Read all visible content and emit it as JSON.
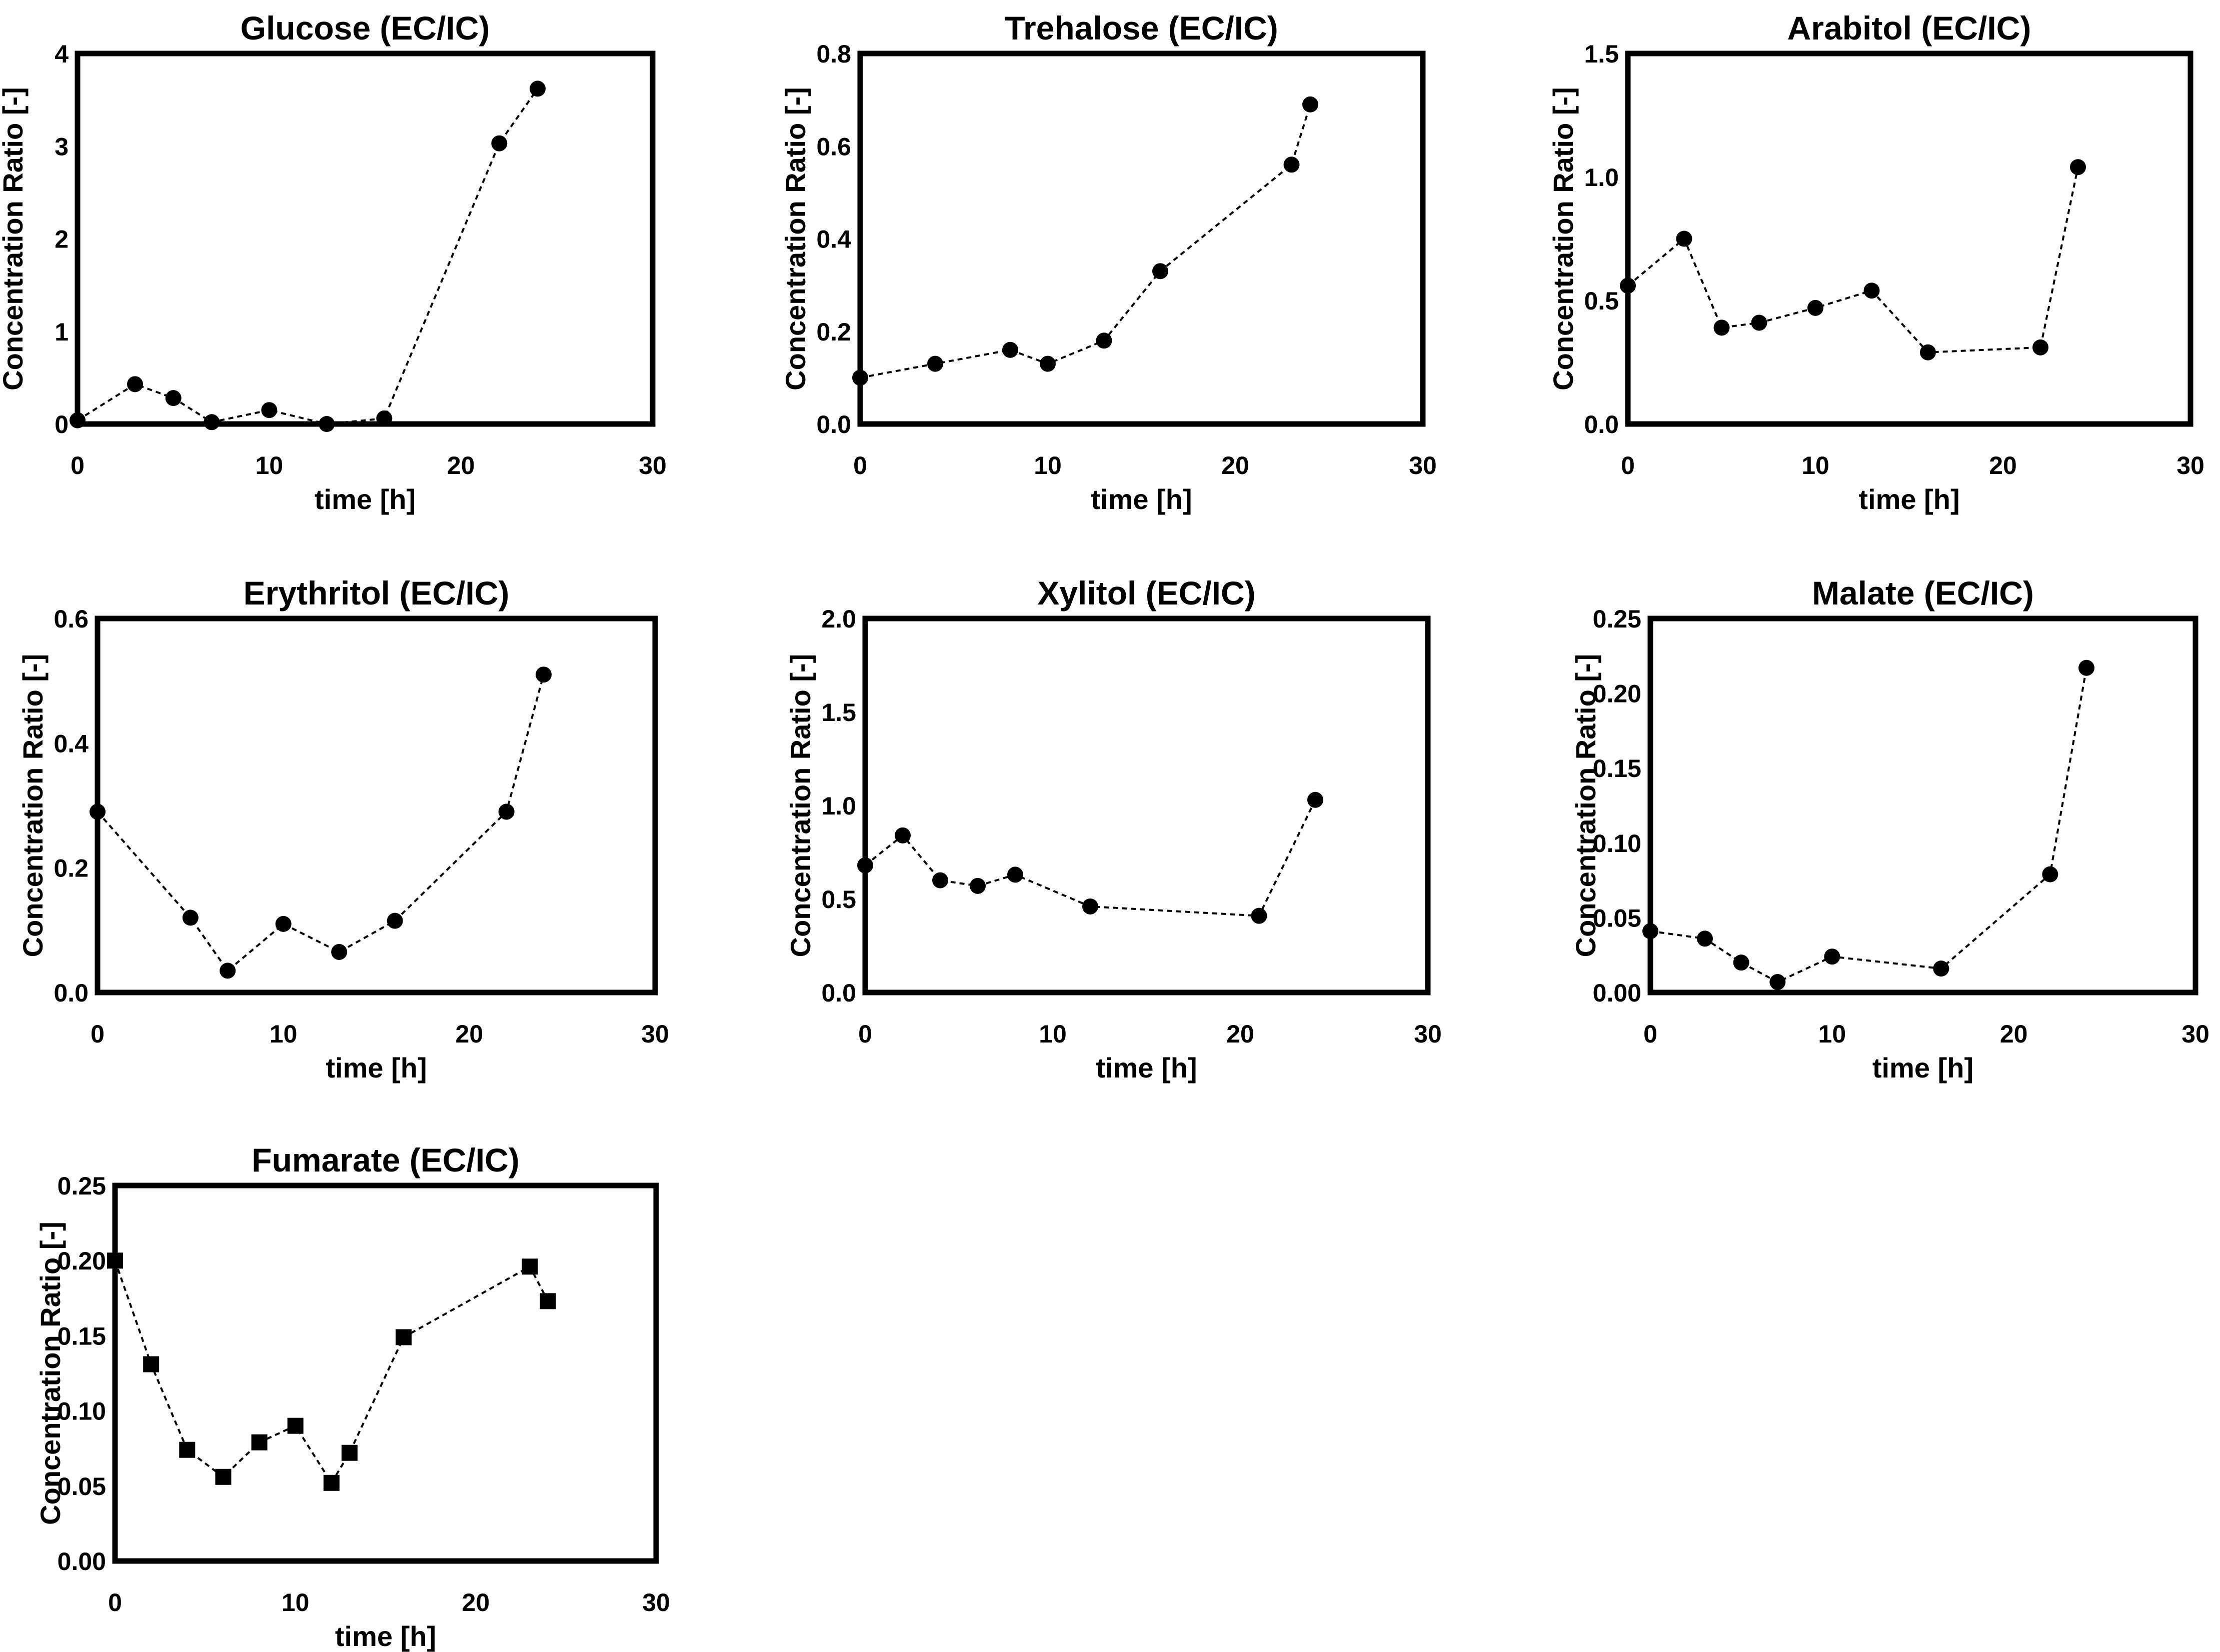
{
  "figure": {
    "background": "#ffffff",
    "mark_color": "#000000"
  },
  "chart_data": [
    {
      "type": "line",
      "title": "Glucose (EC/IC)",
      "xlabel": "time [h]",
      "ylabel": "Concentration Ratio [-]",
      "xlim": [
        0,
        30
      ],
      "ylim": [
        0,
        4
      ],
      "xticks": [
        0,
        10,
        20,
        30
      ],
      "yticks": [
        0,
        1,
        2,
        3,
        4
      ],
      "ytick_labels": [
        "0",
        "1",
        "2",
        "3",
        "4"
      ],
      "marker": "circle",
      "x": [
        0,
        3,
        5,
        7,
        10,
        13,
        16,
        22,
        24
      ],
      "y": [
        0.04,
        0.43,
        0.28,
        0.02,
        0.15,
        0.0,
        0.06,
        3.03,
        3.62
      ]
    },
    {
      "type": "line",
      "title": "Trehalose (EC/IC)",
      "xlabel": "time [h]",
      "ylabel": "Concentration Ratio [-]",
      "xlim": [
        0,
        30
      ],
      "ylim": [
        0,
        0.8
      ],
      "xticks": [
        0,
        10,
        20,
        30
      ],
      "yticks": [
        0,
        0.2,
        0.4,
        0.6,
        0.8
      ],
      "ytick_labels": [
        "0.0",
        "0.2",
        "0.4",
        "0.6",
        "0.8"
      ],
      "marker": "circle",
      "x": [
        0,
        4,
        8,
        10,
        13,
        16,
        23,
        24
      ],
      "y": [
        0.1,
        0.13,
        0.16,
        0.13,
        0.18,
        0.33,
        0.56,
        0.69
      ]
    },
    {
      "type": "line",
      "title": "Arabitol (EC/IC)",
      "xlabel": "time [h]",
      "ylabel": "Concentration Ratio [-]",
      "xlim": [
        0,
        30
      ],
      "ylim": [
        0,
        1.5
      ],
      "xticks": [
        0,
        10,
        20,
        30
      ],
      "yticks": [
        0,
        0.5,
        1.0,
        1.5
      ],
      "ytick_labels": [
        "0.0",
        "0.5",
        "1.0",
        "1.5"
      ],
      "marker": "circle",
      "x": [
        0,
        3,
        5,
        7,
        10,
        13,
        16,
        22,
        24
      ],
      "y": [
        0.56,
        0.75,
        0.39,
        0.41,
        0.47,
        0.54,
        0.29,
        0.31,
        1.04
      ]
    },
    {
      "type": "line",
      "title": "Erythritol (EC/IC)",
      "xlabel": "time [h]",
      "ylabel": "Concentration Ratio [-]",
      "xlim": [
        0,
        30
      ],
      "ylim": [
        0,
        0.6
      ],
      "xticks": [
        0,
        10,
        20,
        30
      ],
      "yticks": [
        0,
        0.2,
        0.4,
        0.6
      ],
      "ytick_labels": [
        "0.0",
        "0.2",
        "0.4",
        "0.6"
      ],
      "marker": "circle",
      "x": [
        0,
        5,
        7,
        10,
        13,
        16,
        22,
        24
      ],
      "y": [
        0.29,
        0.12,
        0.035,
        0.11,
        0.065,
        0.115,
        0.29,
        0.51
      ]
    },
    {
      "type": "line",
      "title": "Xylitol (EC/IC)",
      "xlabel": "time [h]",
      "ylabel": "Concentration Ratio [-]",
      "xlim": [
        0,
        30
      ],
      "ylim": [
        0,
        2.0
      ],
      "xticks": [
        0,
        10,
        20,
        30
      ],
      "yticks": [
        0,
        0.5,
        1.0,
        1.5,
        2.0
      ],
      "ytick_labels": [
        "0.0",
        "0.5",
        "1.0",
        "1.5",
        "2.0"
      ],
      "marker": "circle",
      "x": [
        0,
        2,
        4,
        6,
        8,
        12,
        21,
        24
      ],
      "y": [
        0.68,
        0.84,
        0.6,
        0.57,
        0.63,
        0.46,
        0.41,
        1.03
      ]
    },
    {
      "type": "line",
      "title": "Malate (EC/IC)",
      "xlabel": "time [h]",
      "ylabel": "Concentration Ratio [-]",
      "xlim": [
        0,
        30
      ],
      "ylim": [
        0,
        0.25
      ],
      "xticks": [
        0,
        10,
        20,
        30
      ],
      "yticks": [
        0,
        0.05,
        0.1,
        0.15,
        0.2,
        0.25
      ],
      "ytick_labels": [
        "0.00",
        "0.05",
        "0.10",
        "0.15",
        "0.20",
        "0.25"
      ],
      "marker": "circle",
      "x": [
        0,
        3,
        5,
        7,
        10,
        16,
        22,
        24
      ],
      "y": [
        0.041,
        0.036,
        0.02,
        0.007,
        0.024,
        0.016,
        0.079,
        0.217
      ]
    },
    {
      "type": "line",
      "title": "Fumarate (EC/IC)",
      "xlabel": "time [h]",
      "ylabel": "Concentration Ratio [-]",
      "xlim": [
        0,
        30
      ],
      "ylim": [
        0,
        0.25
      ],
      "xticks": [
        0,
        10,
        20,
        30
      ],
      "yticks": [
        0,
        0.05,
        0.1,
        0.15,
        0.2,
        0.25
      ],
      "ytick_labels": [
        "0.00",
        "0.05",
        "0.10",
        "0.15",
        "0.20",
        "0.25"
      ],
      "marker": "square",
      "x": [
        0,
        2,
        4,
        6,
        8,
        10,
        12,
        13,
        16,
        23,
        24
      ],
      "y": [
        0.2,
        0.131,
        0.074,
        0.056,
        0.079,
        0.09,
        0.052,
        0.072,
        0.149,
        0.196,
        0.173
      ]
    }
  ]
}
